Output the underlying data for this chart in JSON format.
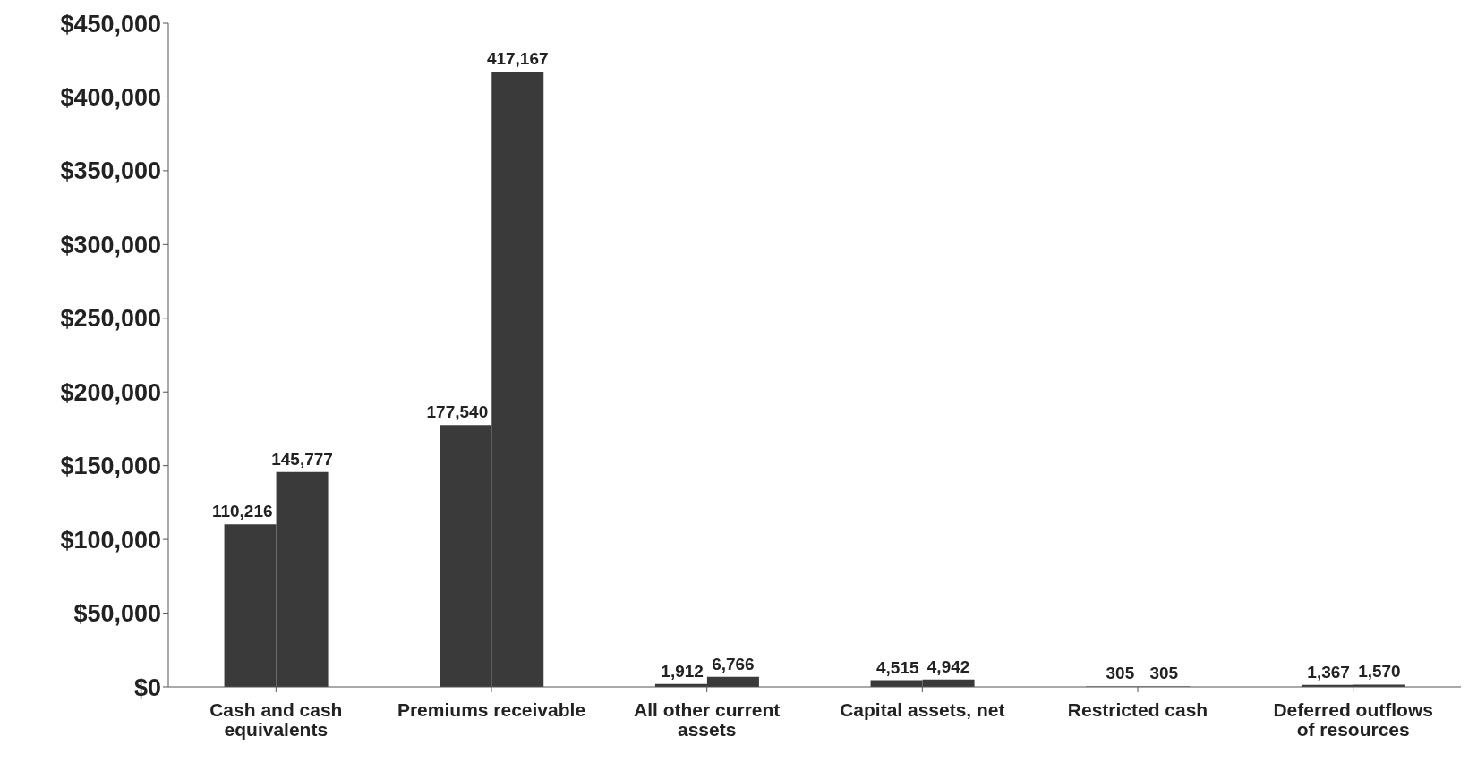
{
  "chart_data": {
    "type": "bar",
    "categories": [
      "Cash and cash equivalents",
      "Premiums receivable",
      "All other current assets",
      "Capital assets, net",
      "Restricted cash",
      "Deferred outflows of resources"
    ],
    "series": [
      {
        "color": "#3a3a3a",
        "values": [
          110216,
          177540,
          1912,
          4515,
          305,
          1367
        ],
        "value_labels": [
          "110,216",
          "177,540",
          "1,912",
          "4,515",
          "305",
          "1,367"
        ]
      },
      {
        "color": "#3a3a3a",
        "values": [
          145777,
          417167,
          6766,
          4942,
          305,
          1570
        ],
        "value_labels": [
          "145,777",
          "417,167",
          "6,766",
          "4,942",
          "305",
          "1,570"
        ]
      }
    ],
    "ylim": [
      0,
      450000
    ],
    "yticks": [
      {
        "value": 0,
        "label": "$0"
      },
      {
        "value": 50000,
        "label": "$50,000"
      },
      {
        "value": 100000,
        "label": "$100,000"
      },
      {
        "value": 150000,
        "label": "$150,000"
      },
      {
        "value": 200000,
        "label": "$200,000"
      },
      {
        "value": 250000,
        "label": "$250,000"
      },
      {
        "value": 300000,
        "label": "$300,000"
      },
      {
        "value": 350000,
        "label": "$350,000"
      },
      {
        "value": 400000,
        "label": "$400,000"
      },
      {
        "value": 450000,
        "label": "$450,000"
      }
    ],
    "grid": false,
    "legend": false
  }
}
